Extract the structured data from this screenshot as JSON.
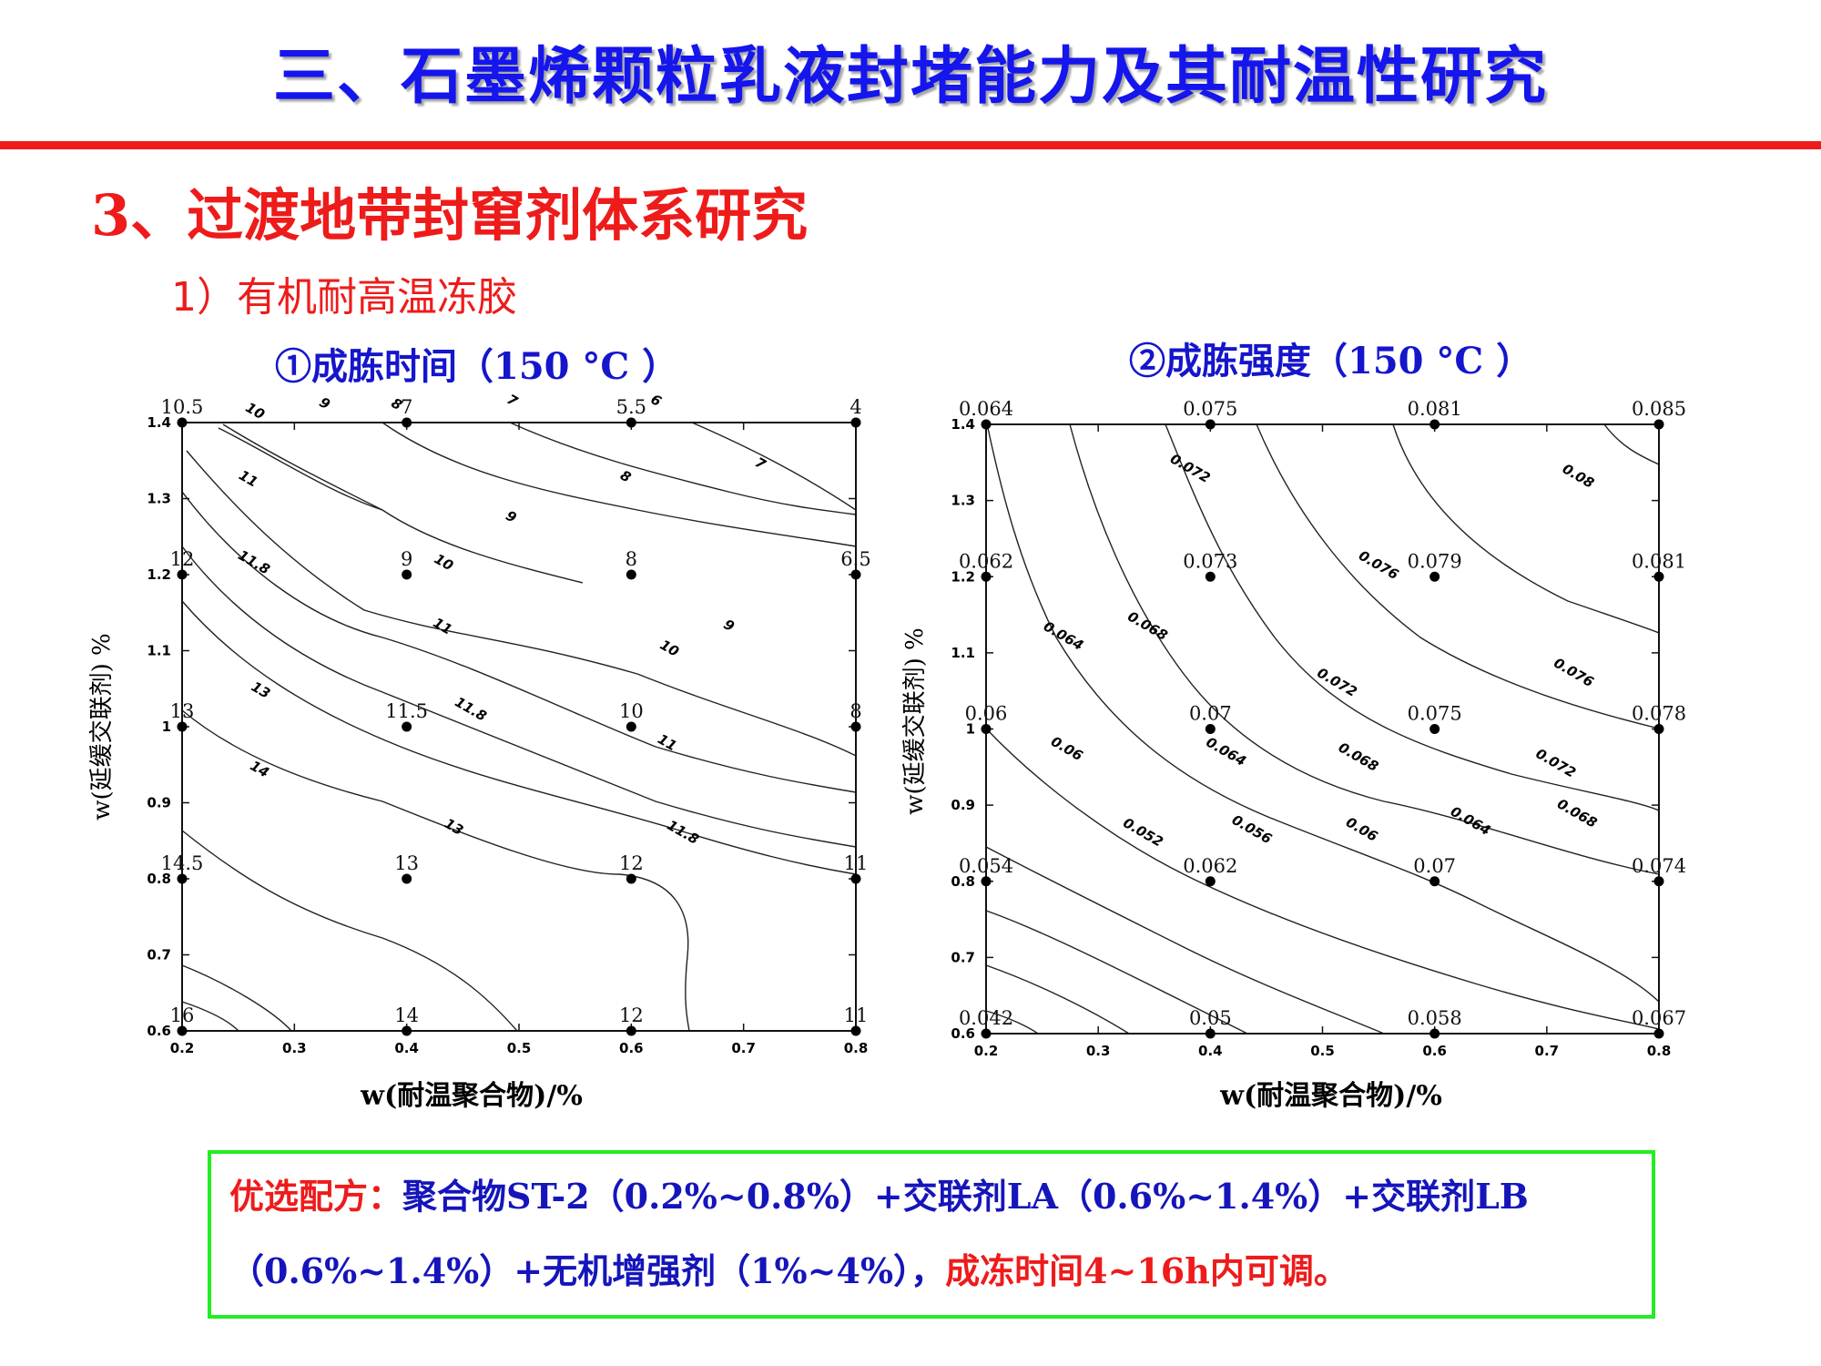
{
  "header": {
    "title": "三、石墨烯颗粒乳液封堵能力及其耐温性研究",
    "rule_color": "#ee1b1b"
  },
  "section": {
    "heading": "3、过渡地带封窜剂体系研究",
    "subheading": "1）有机耐高温冻胶"
  },
  "chart_data": [
    {
      "type": "contour",
      "title": "①成胨时间（150 °C ）",
      "xlabel": "w(耐温聚合物)/%",
      "ylabel": "w(延缓交联剂) %",
      "xlim": [
        0.2,
        0.8
      ],
      "ylim": [
        0.6,
        1.4
      ],
      "xticks": [
        "0.2",
        "0.3",
        "0.4",
        "0.5",
        "0.6",
        "0.7",
        "0.8"
      ],
      "yticks": [
        "0.6",
        "0.7",
        "0.8",
        "0.9",
        "1",
        "1.1",
        "1.2",
        "1.3",
        "1.4"
      ],
      "x": [
        0.2,
        0.4,
        0.6,
        0.8
      ],
      "y": [
        1.4,
        1.2,
        1.0,
        0.8,
        0.6
      ],
      "points": [
        [
          "10.5",
          "7",
          "5.5",
          "4"
        ],
        [
          "12",
          "9",
          "8",
          "6.5"
        ],
        [
          "13",
          "11.5",
          "10",
          "8"
        ],
        [
          "14.5",
          "13",
          "12",
          "11"
        ],
        [
          "16",
          "14",
          "12",
          "11"
        ]
      ],
      "contour_labels": [
        {
          "text": "10",
          "x": 0.263,
          "y": 1.41
        },
        {
          "text": "9",
          "x": 0.325,
          "y": 1.42
        },
        {
          "text": "8",
          "x": 0.389,
          "y": 1.419
        },
        {
          "text": "7",
          "x": 0.492,
          "y": 1.424
        },
        {
          "text": "6",
          "x": 0.62,
          "y": 1.424
        },
        {
          "text": "11",
          "x": 0.257,
          "y": 1.321
        },
        {
          "text": "8",
          "x": 0.593,
          "y": 1.324
        },
        {
          "text": "7",
          "x": 0.713,
          "y": 1.341
        },
        {
          "text": "9",
          "x": 0.491,
          "y": 1.271
        },
        {
          "text": "11.8",
          "x": 0.262,
          "y": 1.211
        },
        {
          "text": "10",
          "x": 0.431,
          "y": 1.211
        },
        {
          "text": "11",
          "x": 0.43,
          "y": 1.127
        },
        {
          "text": "9",
          "x": 0.685,
          "y": 1.128
        },
        {
          "text": "10",
          "x": 0.632,
          "y": 1.098
        },
        {
          "text": "13",
          "x": 0.268,
          "y": 1.043
        },
        {
          "text": "11.8",
          "x": 0.455,
          "y": 1.018
        },
        {
          "text": "11",
          "x": 0.63,
          "y": 0.974
        },
        {
          "text": "14",
          "x": 0.267,
          "y": 0.939
        },
        {
          "text": "13",
          "x": 0.44,
          "y": 0.863
        },
        {
          "text": "11.8",
          "x": 0.644,
          "y": 0.856
        }
      ]
    },
    {
      "type": "contour",
      "title": "②成胨强度（150 °C ）",
      "xlabel": "w(耐温聚合物)/%",
      "ylabel": "w(延缓交联剂) %",
      "xlim": [
        0.2,
        0.8
      ],
      "ylim": [
        0.6,
        1.4
      ],
      "xticks": [
        "0.2",
        "0.3",
        "0.4",
        "0.5",
        "0.6",
        "0.7",
        "0.8"
      ],
      "yticks": [
        "0.6",
        "0.7",
        "0.8",
        "0.9",
        "1",
        "1.1",
        "1.2",
        "1.3",
        "1.4"
      ],
      "x": [
        0.2,
        0.4,
        0.6,
        0.8
      ],
      "y": [
        1.4,
        1.2,
        1.0,
        0.8,
        0.6
      ],
      "points": [
        [
          "0.064",
          "0.075",
          "0.081",
          "0.085"
        ],
        [
          "0.062",
          "0.073",
          "0.079",
          "0.081"
        ],
        [
          "0.06",
          "0.07",
          "0.075",
          "0.078"
        ],
        [
          "0.054",
          "0.062",
          "0.07",
          "0.074"
        ],
        [
          "0.042",
          "0.05",
          "0.058",
          "0.067"
        ]
      ],
      "contour_labels": [
        {
          "text": "0.072",
          "x": 0.38,
          "y": 1.337
        },
        {
          "text": "0.08",
          "x": 0.726,
          "y": 1.327
        },
        {
          "text": "0.076",
          "x": 0.548,
          "y": 1.21
        },
        {
          "text": "0.064",
          "x": 0.267,
          "y": 1.117
        },
        {
          "text": "0.068",
          "x": 0.342,
          "y": 1.13
        },
        {
          "text": "0.072",
          "x": 0.511,
          "y": 1.056
        },
        {
          "text": "0.076",
          "x": 0.722,
          "y": 1.069
        },
        {
          "text": "0.06",
          "x": 0.27,
          "y": 0.969
        },
        {
          "text": "0.064",
          "x": 0.412,
          "y": 0.965
        },
        {
          "text": "0.068",
          "x": 0.53,
          "y": 0.958
        },
        {
          "text": "0.072",
          "x": 0.706,
          "y": 0.95
        },
        {
          "text": "0.052",
          "x": 0.338,
          "y": 0.859
        },
        {
          "text": "0.056",
          "x": 0.435,
          "y": 0.863
        },
        {
          "text": "0.06",
          "x": 0.533,
          "y": 0.863
        },
        {
          "text": "0.064",
          "x": 0.63,
          "y": 0.874
        },
        {
          "text": "0.068",
          "x": 0.725,
          "y": 0.884
        }
      ]
    }
  ],
  "formula": {
    "label": "优选配方：",
    "line1_body": "聚合物ST-2（0.2%~0.8%）+交联剂LA（0.6%~1.4%）+交联剂LB",
    "line2_body": "（0.6%~1.4%）+无机增强剂（1%~4%），",
    "conclusion": "成冻时间4~16h内可调。",
    "border_color": "#22ee22"
  }
}
